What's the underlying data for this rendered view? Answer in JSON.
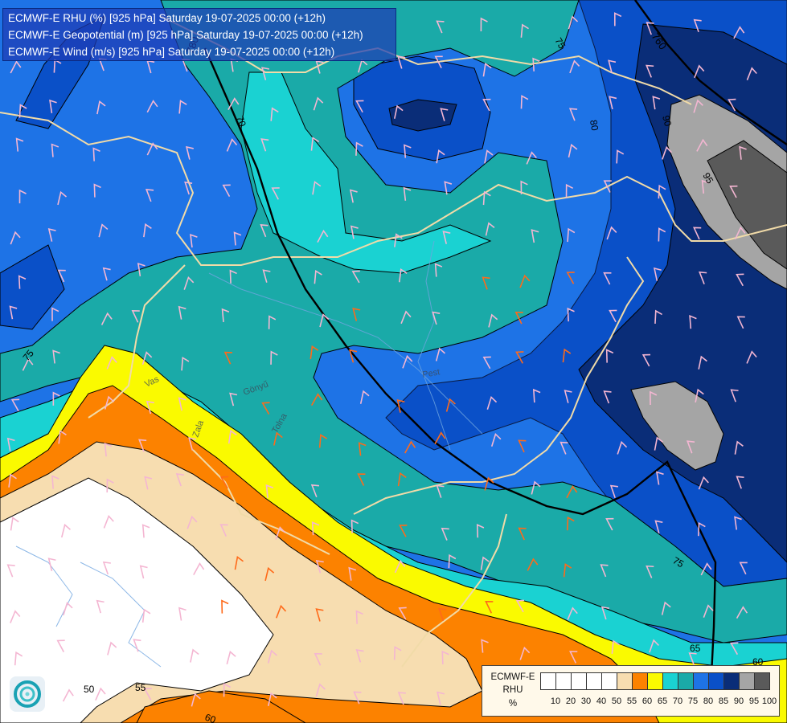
{
  "title": {
    "line1": "ECMWF-E RHU (%) [925 hPa] Saturday 19-07-2025 00:00 (+12h)",
    "line2": "ECMWF-E Geopotential (m) [925 hPa] Saturday 19-07-2025 00:00 (+12h)",
    "line3": "ECMWF-E Wind (m/s) [925 hPa] Saturday 19-07-2025 00:00 (+12h)"
  },
  "legend": {
    "line1": "ECMWF-E",
    "line2": "RHU",
    "line3": "%",
    "ticks": [
      "10",
      "20",
      "30",
      "40",
      "50",
      "55",
      "60",
      "65",
      "70",
      "75",
      "80",
      "85",
      "90",
      "95",
      "100"
    ],
    "colors": [
      "#ffffff",
      "#ffffff",
      "#ffffff",
      "#ffffff",
      "#ffffff",
      "#f7ddb0",
      "#fc8200",
      "#fafa00",
      "#1ad2d2",
      "#1aaaa8",
      "#1e73e6",
      "#0a50c8",
      "#0a2d78",
      "#a5a5a5",
      "#5a5a5a"
    ]
  },
  "map_labels": {
    "rhu": [
      {
        "text": "75",
        "id": "rhu-75-a"
      },
      {
        "text": "80",
        "id": "rhu-80-a"
      },
      {
        "text": "90",
        "id": "rhu-90-a"
      },
      {
        "text": "95",
        "id": "rhu-95-a"
      },
      {
        "text": "75",
        "id": "rhu-75-b"
      },
      {
        "text": "75",
        "id": "rhu-75-c"
      },
      {
        "text": "65",
        "id": "rhu-65-a"
      },
      {
        "text": "60",
        "id": "rhu-60-a"
      },
      {
        "text": "55",
        "id": "rhu-55-a"
      },
      {
        "text": "50",
        "id": "rhu-50-a"
      },
      {
        "text": "60",
        "id": "rhu-60-b"
      },
      {
        "text": "70",
        "id": "rhu-70-a"
      }
    ],
    "geopotential": [
      {
        "text": "760",
        "id": "geo-760"
      },
      {
        "text": "780",
        "id": "geo-780"
      }
    ],
    "places": [
      {
        "text": "Vas",
        "id": "place-vas"
      },
      {
        "text": "Zala",
        "id": "place-zala"
      },
      {
        "text": "Pest",
        "id": "place-pest"
      },
      {
        "text": "Tolna",
        "id": "place-tolna"
      },
      {
        "text": "Gönyű",
        "id": "place-gonyu"
      }
    ]
  },
  "colors": {
    "blue80": "#1e73e6",
    "blue85": "#0a50c8",
    "navy90": "#0a2d78",
    "teal75": "#1aaaa8",
    "cyan70": "#1ad2d2",
    "yellow65": "#fafa00",
    "orange60": "#fc8200",
    "beige55": "#f7ddb0",
    "white50": "#ffffff",
    "grey95": "#a5a5a5",
    "grey100": "#5a5a5a"
  }
}
